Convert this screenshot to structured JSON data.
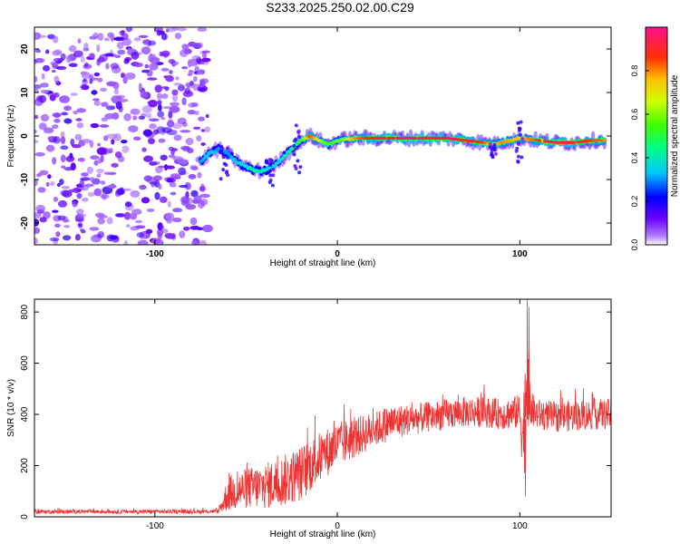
{
  "page_title": "S233.2025.250.02.00.C29",
  "chart_data": [
    {
      "type": "heatmap",
      "title": "S233.2025.250.02.00.C29",
      "xlabel": "Height of straight line (km)",
      "ylabel": "Frequency (Hz)",
      "xlim": [
        -166,
        150
      ],
      "ylim": [
        -25,
        25
      ],
      "xticks": [
        -100,
        0,
        100
      ],
      "yticks": [
        -20,
        -10,
        0,
        10,
        20
      ],
      "noise_region": {
        "x_from": -166,
        "x_to": -75,
        "description": "scattered low-amplitude speckle"
      },
      "signal_track": {
        "x": [
          -75,
          -70,
          -65,
          -60,
          -55,
          -50,
          -45,
          -40,
          -35,
          -30,
          -25,
          -20,
          -15,
          -10,
          -5,
          0,
          10,
          20,
          40,
          60,
          80,
          85,
          90,
          100,
          110,
          120,
          130,
          140,
          147
        ],
        "y": [
          -6,
          -4,
          -3,
          -4,
          -6,
          -7,
          -8,
          -8,
          -7,
          -5,
          -3,
          -1,
          0,
          -1,
          -2,
          -1,
          -0.5,
          -0.5,
          -0.5,
          -0.5,
          -1.5,
          -2,
          -1.5,
          -0.5,
          -1,
          -1.5,
          -1.5,
          -1,
          -1
        ],
        "peak_amplitude": [
          0.3,
          0.35,
          0.3,
          0.3,
          0.35,
          0.4,
          0.45,
          0.4,
          0.35,
          0.4,
          0.45,
          0.55,
          0.85,
          0.7,
          0.55,
          0.6,
          0.8,
          0.9,
          0.95,
          0.95,
          0.85,
          0.7,
          0.8,
          0.75,
          0.85,
          0.95,
          0.9,
          0.85,
          0.8
        ]
      },
      "colorbar": {
        "label": "Normalized spectral amplitude",
        "range": [
          0,
          1
        ],
        "ticks": [
          "0.0",
          "0.2",
          "0.4",
          "0.6",
          "0.8"
        ]
      }
    },
    {
      "type": "line",
      "xlabel": "Height of straight line (km)",
      "ylabel": "SNR (10 * v/v)",
      "xlim": [
        -166,
        150
      ],
      "ylim": [
        0,
        850
      ],
      "xticks": [
        -100,
        0,
        100
      ],
      "yticks": [
        0,
        200,
        400,
        600,
        800
      ],
      "color": "#ee3333",
      "envelope": {
        "x": [
          -166,
          -120,
          -80,
          -65,
          -60,
          -50,
          -40,
          -30,
          -20,
          -10,
          0,
          10,
          20,
          30,
          40,
          50,
          60,
          70,
          80,
          90,
          100,
          102,
          104,
          106,
          110,
          120,
          130,
          140,
          150
        ],
        "mean": [
          20,
          20,
          20,
          22,
          90,
          110,
          120,
          140,
          170,
          230,
          280,
          310,
          340,
          370,
          380,
          390,
          400,
          410,
          410,
          400,
          410,
          300,
          600,
          420,
          400,
          390,
          395,
          400,
          400
        ],
        "spread": [
          8,
          8,
          8,
          8,
          70,
          80,
          90,
          100,
          110,
          100,
          90,
          80,
          70,
          70,
          60,
          60,
          60,
          60,
          60,
          60,
          70,
          200,
          250,
          70,
          60,
          60,
          60,
          60,
          60
        ]
      },
      "spikes": [
        {
          "x": 104,
          "y": 850
        },
        {
          "x": 105,
          "y": 820
        },
        {
          "x": 103,
          "y": 80
        }
      ]
    }
  ]
}
